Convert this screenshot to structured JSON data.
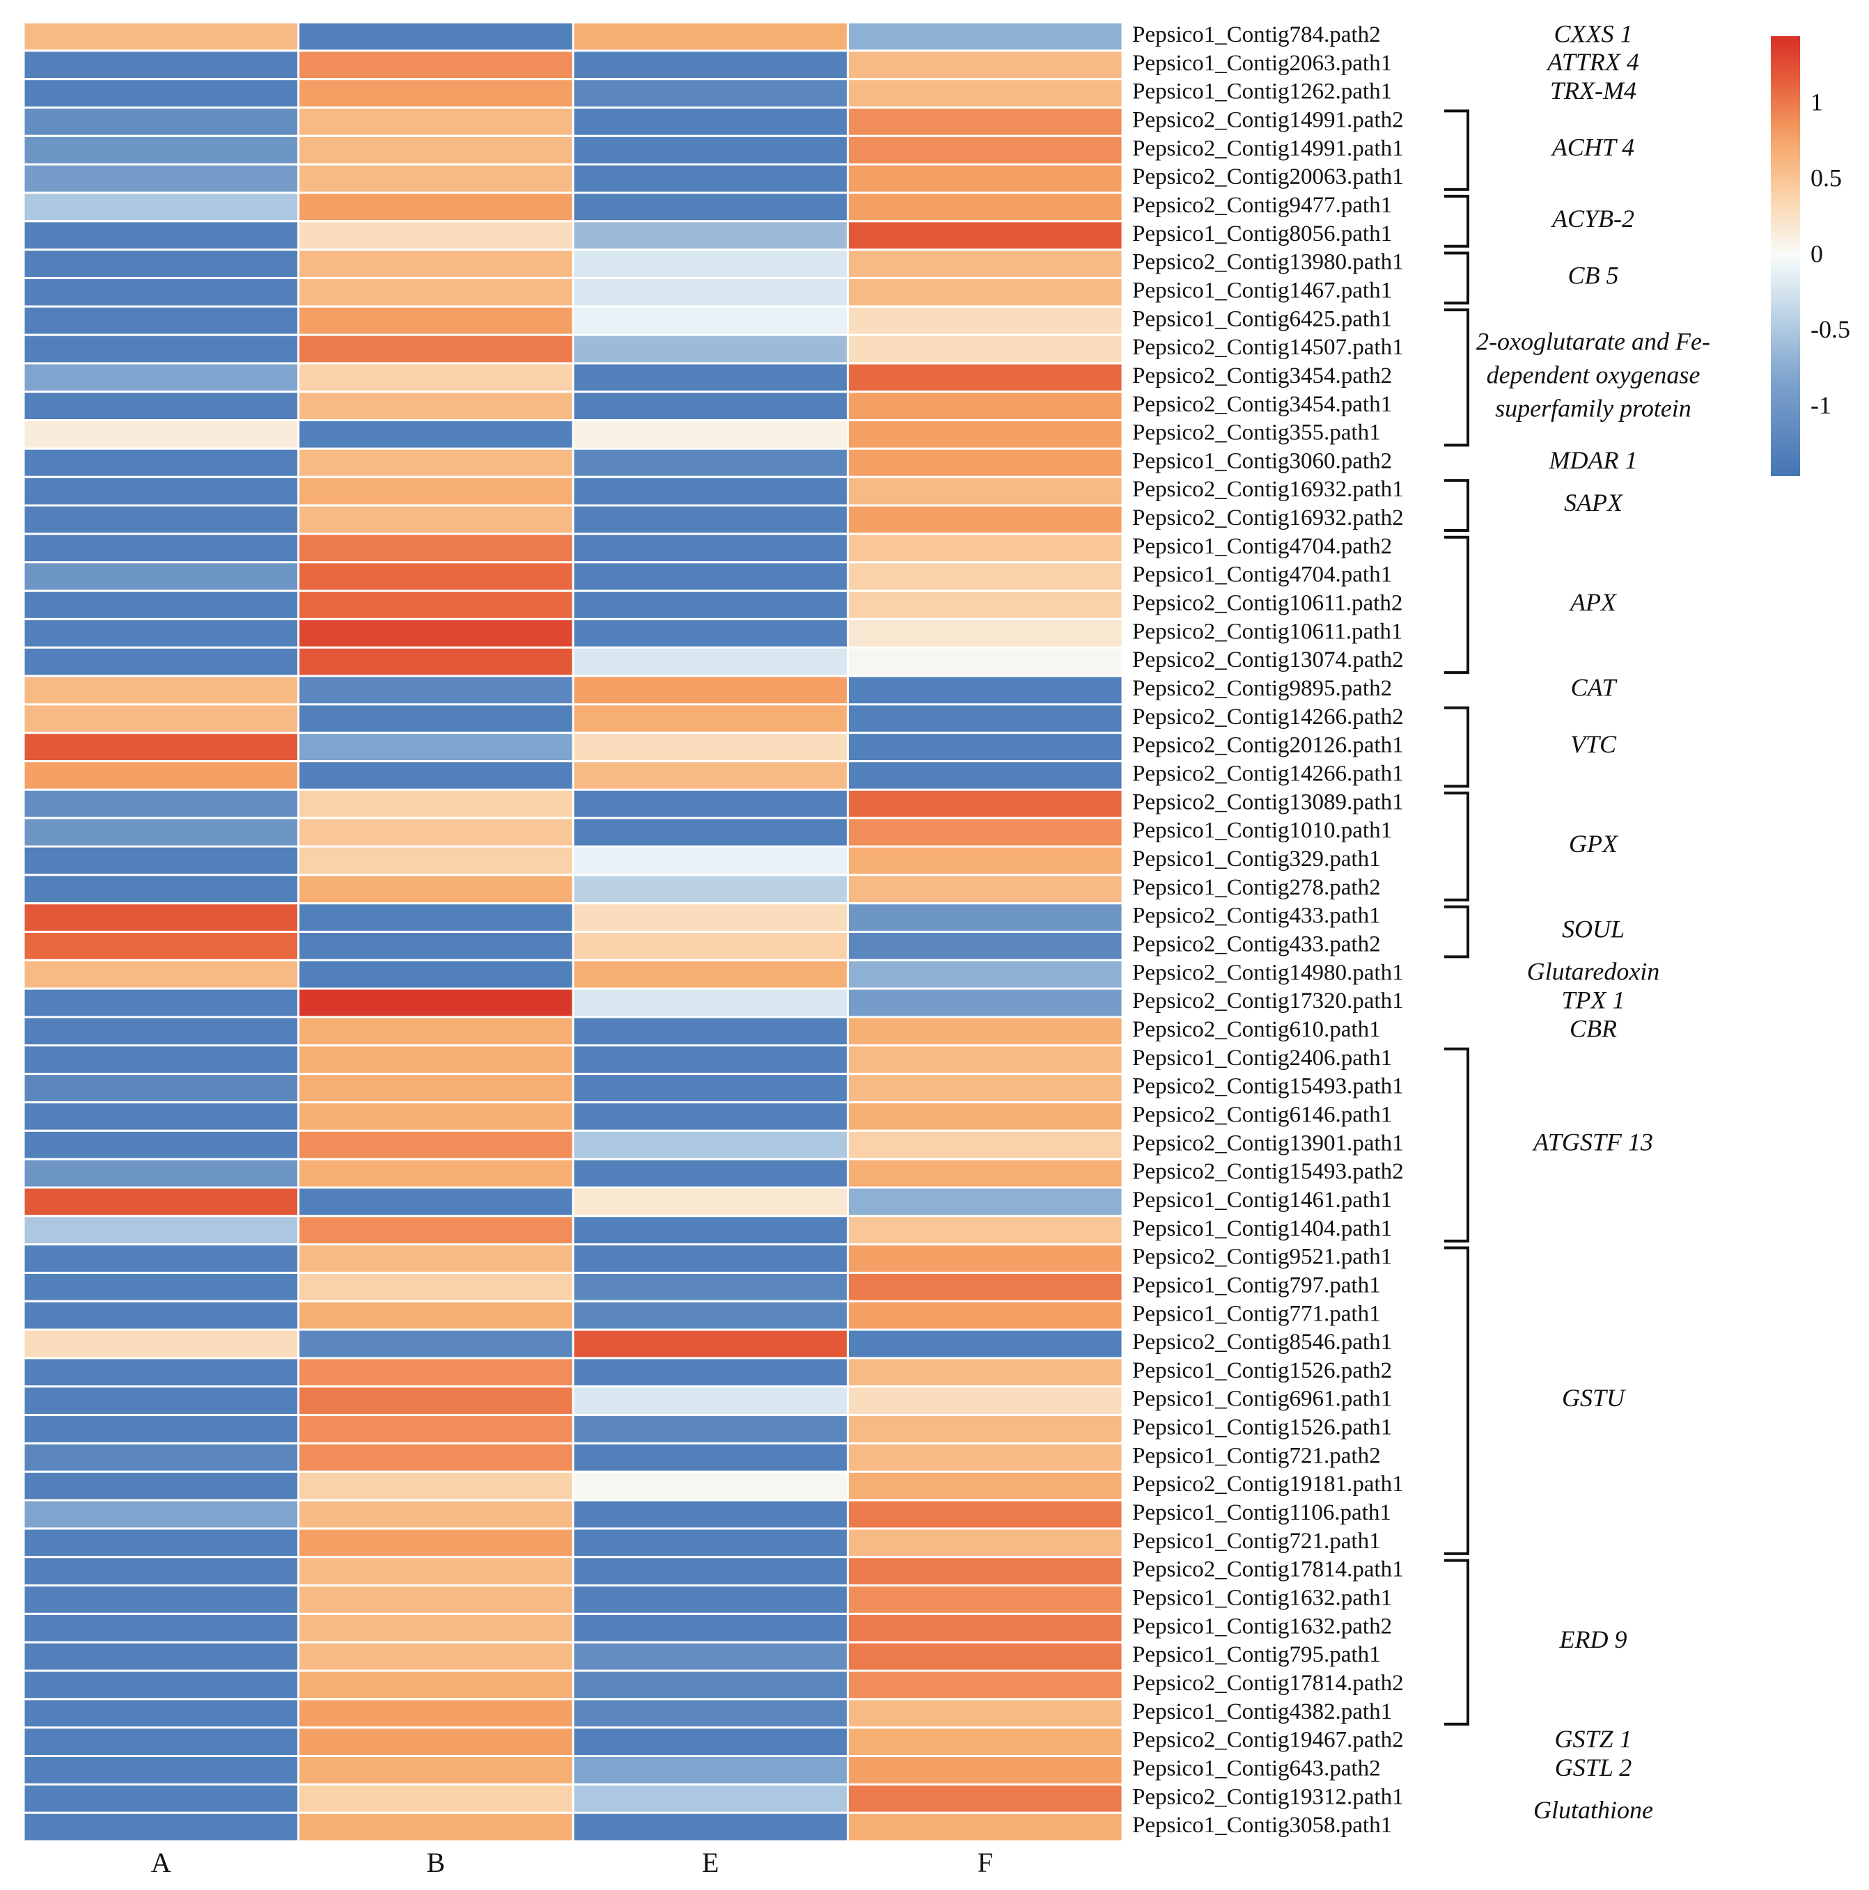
{
  "chart_data": {
    "type": "heatmap",
    "title": "",
    "columns": [
      "A",
      "B",
      "E",
      "F"
    ],
    "rows": [
      {
        "label": "Pepsico1_Contig784.path2",
        "values": [
          0.6,
          -1.3,
          0.7,
          -0.7
        ]
      },
      {
        "label": "Pepsico1_Contig2063.path1",
        "values": [
          -1.3,
          0.9,
          -1.3,
          0.6
        ]
      },
      {
        "label": "Pepsico1_Contig1262.path1",
        "values": [
          -1.3,
          0.8,
          -1.2,
          0.6
        ]
      },
      {
        "label": "Pepsico2_Contig14991.path2",
        "values": [
          -1.1,
          0.6,
          -1.3,
          0.9
        ]
      },
      {
        "label": "Pepsico2_Contig14991.path1",
        "values": [
          -1.0,
          0.6,
          -1.3,
          0.9
        ]
      },
      {
        "label": "Pepsico2_Contig20063.path1",
        "values": [
          -0.9,
          0.6,
          -1.3,
          0.8
        ]
      },
      {
        "label": "Pepsico2_Contig9477.path1",
        "values": [
          -0.5,
          0.8,
          -1.3,
          0.8
        ]
      },
      {
        "label": "Pepsico1_Contig8056.path1",
        "values": [
          -1.3,
          0.3,
          -0.6,
          1.2
        ]
      },
      {
        "label": "Pepsico2_Contig13980.path1",
        "values": [
          -1.3,
          0.6,
          -0.2,
          0.6
        ]
      },
      {
        "label": "Pepsico1_Contig1467.path1",
        "values": [
          -1.3,
          0.6,
          -0.2,
          0.6
        ]
      },
      {
        "label": "Pepsico1_Contig6425.path1",
        "values": [
          -1.3,
          0.8,
          -0.1,
          0.3
        ]
      },
      {
        "label": "Pepsico2_Contig14507.path1",
        "values": [
          -1.3,
          1.0,
          -0.6,
          0.3
        ]
      },
      {
        "label": "Pepsico2_Contig3454.path2",
        "values": [
          -0.8,
          0.4,
          -1.3,
          1.1
        ]
      },
      {
        "label": "Pepsico2_Contig3454.path1",
        "values": [
          -1.3,
          0.6,
          -1.3,
          0.8
        ]
      },
      {
        "label": "Pepsico2_Contig355.path1",
        "values": [
          0.15,
          -1.3,
          0.1,
          0.8
        ]
      },
      {
        "label": "Pepsico1_Contig3060.path2",
        "values": [
          -1.3,
          0.6,
          -1.2,
          0.8
        ]
      },
      {
        "label": "Pepsico2_Contig16932.path1",
        "values": [
          -1.3,
          0.7,
          -1.3,
          0.6
        ]
      },
      {
        "label": "Pepsico2_Contig16932.path2",
        "values": [
          -1.3,
          0.6,
          -1.3,
          0.8
        ]
      },
      {
        "label": "Pepsico1_Contig4704.path2",
        "values": [
          -1.3,
          1.0,
          -1.3,
          0.5
        ]
      },
      {
        "label": "Pepsico1_Contig4704.path1",
        "values": [
          -1.0,
          1.1,
          -1.3,
          0.4
        ]
      },
      {
        "label": "Pepsico2_Contig10611.path2",
        "values": [
          -1.3,
          1.1,
          -1.3,
          0.4
        ]
      },
      {
        "label": "Pepsico2_Contig10611.path1",
        "values": [
          -1.3,
          1.3,
          -1.3,
          0.2
        ]
      },
      {
        "label": "Pepsico2_Contig13074.path2",
        "values": [
          -1.3,
          1.2,
          -0.2,
          0.05
        ]
      },
      {
        "label": "Pepsico2_Contig9895.path2",
        "values": [
          0.6,
          -1.2,
          0.8,
          -1.3
        ]
      },
      {
        "label": "Pepsico2_Contig14266.path2",
        "values": [
          0.6,
          -1.3,
          0.7,
          -1.3
        ]
      },
      {
        "label": "Pepsico2_Contig20126.path1",
        "values": [
          1.2,
          -0.8,
          0.3,
          -1.3
        ]
      },
      {
        "label": "Pepsico2_Contig14266.path1",
        "values": [
          0.8,
          -1.3,
          0.6,
          -1.3
        ]
      },
      {
        "label": "Pepsico2_Contig13089.path1",
        "values": [
          -1.1,
          0.4,
          -1.3,
          1.1
        ]
      },
      {
        "label": "Pepsico1_Contig1010.path1",
        "values": [
          -1.0,
          0.5,
          -1.3,
          0.9
        ]
      },
      {
        "label": "Pepsico1_Contig329.path1",
        "values": [
          -1.3,
          0.4,
          -0.1,
          0.7
        ]
      },
      {
        "label": "Pepsico1_Contig278.path2",
        "values": [
          -1.3,
          0.7,
          -0.4,
          0.6
        ]
      },
      {
        "label": "Pepsico2_Contig433.path1",
        "values": [
          1.2,
          -1.3,
          0.3,
          -1.0
        ]
      },
      {
        "label": "Pepsico2_Contig433.path2",
        "values": [
          1.1,
          -1.3,
          0.4,
          -1.2
        ]
      },
      {
        "label": "Pepsico2_Contig14980.path1",
        "values": [
          0.6,
          -1.3,
          0.7,
          -0.7
        ]
      },
      {
        "label": "Pepsico2_Contig17320.path1",
        "values": [
          -1.3,
          1.4,
          -0.2,
          -0.9
        ]
      },
      {
        "label": "Pepsico2_Contig610.path1",
        "values": [
          -1.3,
          0.7,
          -1.3,
          0.7
        ]
      },
      {
        "label": "Pepsico1_Contig2406.path1",
        "values": [
          -1.3,
          0.7,
          -1.3,
          0.6
        ]
      },
      {
        "label": "Pepsico2_Contig15493.path1",
        "values": [
          -1.2,
          0.7,
          -1.3,
          0.6
        ]
      },
      {
        "label": "Pepsico2_Contig6146.path1",
        "values": [
          -1.3,
          0.7,
          -1.3,
          0.7
        ]
      },
      {
        "label": "Pepsico2_Contig13901.path1",
        "values": [
          -1.3,
          0.9,
          -0.5,
          0.4
        ]
      },
      {
        "label": "Pepsico2_Contig15493.path2",
        "values": [
          -1.0,
          0.7,
          -1.3,
          0.7
        ]
      },
      {
        "label": "Pepsico1_Contig1461.path1",
        "values": [
          1.2,
          -1.3,
          0.2,
          -0.7
        ]
      },
      {
        "label": "Pepsico1_Contig1404.path1",
        "values": [
          -0.5,
          0.9,
          -1.3,
          0.5
        ]
      },
      {
        "label": "Pepsico2_Contig9521.path1",
        "values": [
          -1.3,
          0.6,
          -1.3,
          0.8
        ]
      },
      {
        "label": "Pepsico1_Contig797.path1",
        "values": [
          -1.3,
          0.4,
          -1.2,
          1.0
        ]
      },
      {
        "label": "Pepsico1_Contig771.path1",
        "values": [
          -1.3,
          0.7,
          -1.2,
          0.8
        ]
      },
      {
        "label": "Pepsico2_Contig8546.path1",
        "values": [
          0.3,
          -1.2,
          1.2,
          -1.3
        ]
      },
      {
        "label": "Pepsico1_Contig1526.path2",
        "values": [
          -1.3,
          0.9,
          -1.3,
          0.6
        ]
      },
      {
        "label": "Pepsico1_Contig6961.path1",
        "values": [
          -1.3,
          1.0,
          -0.2,
          0.3
        ]
      },
      {
        "label": "Pepsico1_Contig1526.path1",
        "values": [
          -1.3,
          0.9,
          -1.2,
          0.6
        ]
      },
      {
        "label": "Pepsico1_Contig721.path2",
        "values": [
          -1.2,
          0.9,
          -1.3,
          0.6
        ]
      },
      {
        "label": "Pepsico2_Contig19181.path1",
        "values": [
          -1.3,
          0.4,
          0.05,
          0.7
        ]
      },
      {
        "label": "Pepsico1_Contig1106.path1",
        "values": [
          -0.8,
          0.6,
          -1.3,
          1.0
        ]
      },
      {
        "label": "Pepsico1_Contig721.path1",
        "values": [
          -1.3,
          0.8,
          -1.3,
          0.6
        ]
      },
      {
        "label": "Pepsico2_Contig17814.path1",
        "values": [
          -1.3,
          0.6,
          -1.3,
          1.0
        ]
      },
      {
        "label": "Pepsico1_Contig1632.path1",
        "values": [
          -1.3,
          0.6,
          -1.3,
          0.9
        ]
      },
      {
        "label": "Pepsico1_Contig1632.path2",
        "values": [
          -1.3,
          0.6,
          -1.3,
          1.0
        ]
      },
      {
        "label": "Pepsico1_Contig795.path1",
        "values": [
          -1.3,
          0.6,
          -1.1,
          1.0
        ]
      },
      {
        "label": "Pepsico2_Contig17814.path2",
        "values": [
          -1.3,
          0.7,
          -1.2,
          0.9
        ]
      },
      {
        "label": "Pepsico1_Contig4382.path1",
        "values": [
          -1.3,
          0.8,
          -1.2,
          0.6
        ]
      },
      {
        "label": "Pepsico2_Contig19467.path2",
        "values": [
          -1.3,
          0.8,
          -1.3,
          0.7
        ]
      },
      {
        "label": "Pepsico1_Contig643.path2",
        "values": [
          -1.3,
          0.7,
          -0.8,
          0.8
        ]
      },
      {
        "label": "Pepsico2_Contig19312.path1",
        "values": [
          -1.3,
          0.4,
          -0.5,
          1.0
        ]
      },
      {
        "label": "Pepsico1_Contig3058.path1",
        "values": [
          -1.3,
          0.7,
          -1.3,
          0.7
        ]
      }
    ],
    "gene_groups": [
      {
        "label": "CXXS 1",
        "first_row": 0,
        "last_row": 0,
        "bracket": false
      },
      {
        "label": "ATTRX 4",
        "first_row": 1,
        "last_row": 1,
        "bracket": false
      },
      {
        "label": "TRX-M4",
        "first_row": 2,
        "last_row": 2,
        "bracket": false
      },
      {
        "label": "ACHT 4",
        "first_row": 3,
        "last_row": 5,
        "bracket": true
      },
      {
        "label": "ACYB-2",
        "first_row": 6,
        "last_row": 7,
        "bracket": true
      },
      {
        "label": "CB 5",
        "first_row": 8,
        "last_row": 9,
        "bracket": true
      },
      {
        "label": "2-oxoglutarate and Fe-dependent oxygenase superfamily protein",
        "lines": [
          "2-oxoglutarate and Fe-",
          "dependent oxygenase",
          "superfamily protein"
        ],
        "first_row": 10,
        "last_row": 14,
        "bracket": true
      },
      {
        "label": "MDAR 1",
        "first_row": 15,
        "last_row": 15,
        "bracket": false
      },
      {
        "label": "SAPX",
        "first_row": 16,
        "last_row": 17,
        "bracket": true
      },
      {
        "label": "APX",
        "first_row": 18,
        "last_row": 22,
        "bracket": true
      },
      {
        "label": "CAT",
        "first_row": 23,
        "last_row": 23,
        "bracket": false
      },
      {
        "label": "VTC",
        "first_row": 24,
        "last_row": 26,
        "bracket": true
      },
      {
        "label": "GPX",
        "first_row": 27,
        "last_row": 30,
        "bracket": true
      },
      {
        "label": "SOUL",
        "first_row": 31,
        "last_row": 32,
        "bracket": true
      },
      {
        "label": "Glutaredoxin",
        "first_row": 33,
        "last_row": 33,
        "bracket": false
      },
      {
        "label": "TPX 1",
        "first_row": 34,
        "last_row": 34,
        "bracket": false
      },
      {
        "label": "CBR",
        "first_row": 35,
        "last_row": 35,
        "bracket": false
      },
      {
        "label": "ATGSTF 13",
        "first_row": 36,
        "last_row": 42,
        "bracket": true
      },
      {
        "label": "GSTU",
        "first_row": 43,
        "last_row": 53,
        "bracket": true
      },
      {
        "label": "ERD 9",
        "first_row": 54,
        "last_row": 59,
        "bracket": true
      },
      {
        "label": "GSTZ 1",
        "first_row": 60,
        "last_row": 60,
        "bracket": false
      },
      {
        "label": "GSTL 2",
        "first_row": 61,
        "last_row": 61,
        "bracket": false
      },
      {
        "label": "Glutathione",
        "first_row": 62,
        "last_row": 63,
        "bracket": false
      }
    ],
    "colorbar": {
      "ticks": [
        "1",
        "0.5",
        "0",
        "-0.5",
        "-1"
      ],
      "tick_values": [
        1,
        0.5,
        0,
        -0.5,
        -1
      ],
      "range": [
        -1.45,
        1.45
      ]
    },
    "colors": {
      "low": "#4575b4",
      "mid": "#f7fbfa",
      "high": "#d73027",
      "scale": [
        [
          -1.45,
          "#4575b4"
        ],
        [
          -0.8,
          "#7fa4cd"
        ],
        [
          -0.35,
          "#c3d8e8"
        ],
        [
          0.0,
          "#f7fbfa"
        ],
        [
          0.35,
          "#fbd8b2"
        ],
        [
          0.75,
          "#f6a86a"
        ],
        [
          1.1,
          "#e8683f"
        ],
        [
          1.45,
          "#d73027"
        ]
      ]
    }
  }
}
